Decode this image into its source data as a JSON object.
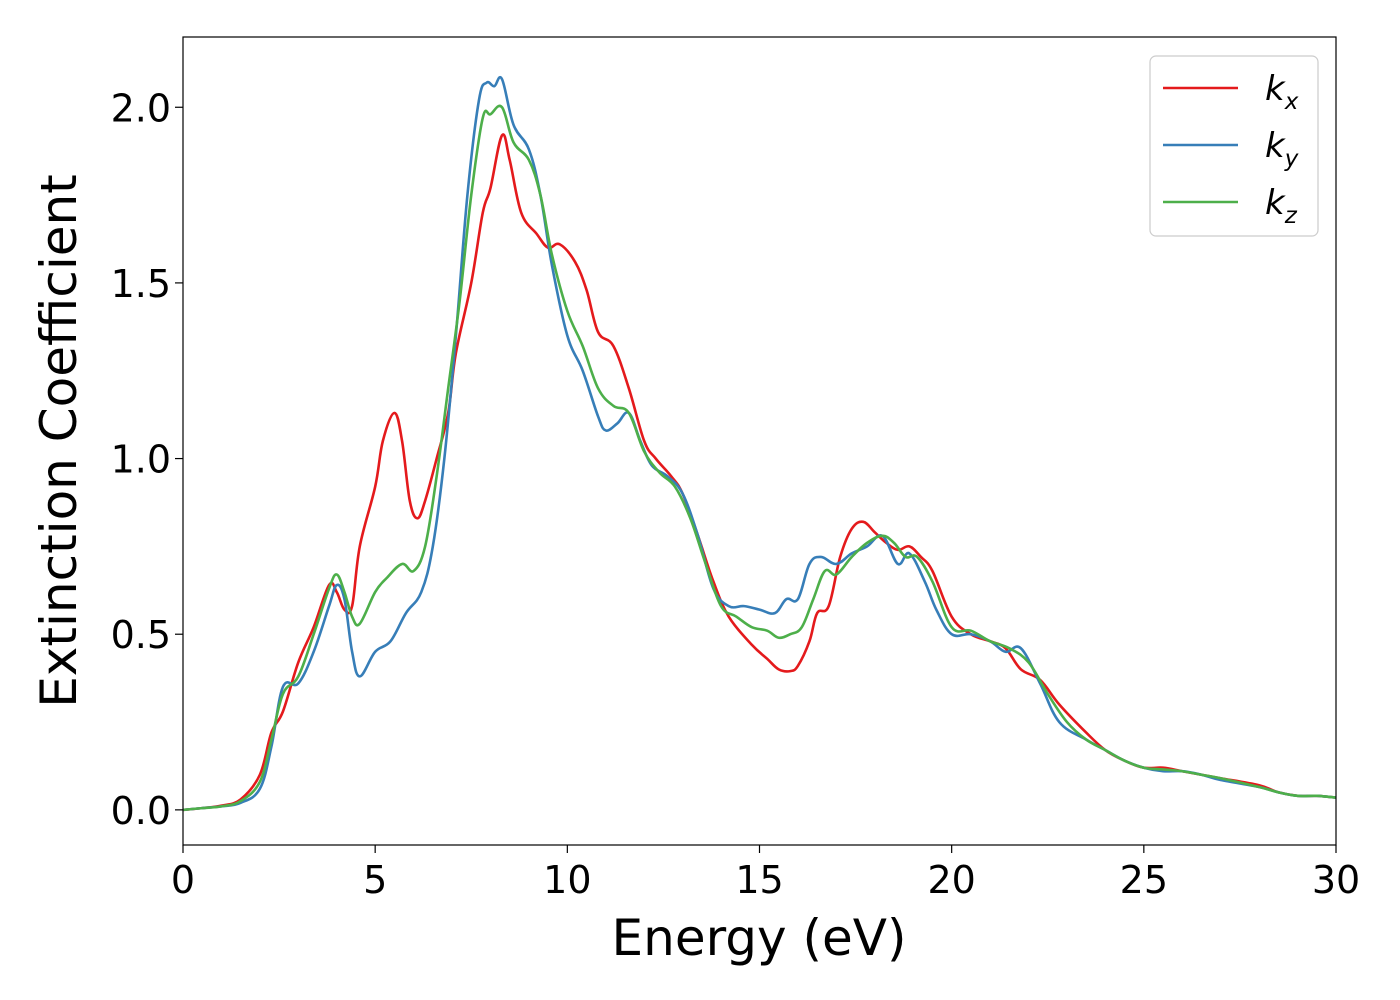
{
  "chart_data": {
    "type": "line",
    "title": "",
    "xlabel": "Energy (eV)",
    "ylabel": "Extinction Coefficient",
    "xlim": [
      0,
      30
    ],
    "ylim": [
      -0.1,
      2.2
    ],
    "xticks": [
      0,
      5,
      10,
      15,
      20,
      25,
      30
    ],
    "xtick_labels": [
      "0",
      "5",
      "10",
      "15",
      "20",
      "25",
      "30"
    ],
    "yticks": [
      0.0,
      0.5,
      1.0,
      1.5,
      2.0
    ],
    "ytick_labels": [
      "0.0",
      "0.5",
      "1.0",
      "1.5",
      "2.0"
    ],
    "grid": false,
    "legend_position": "top-right",
    "series": [
      {
        "name": "k_x",
        "label_main": "k",
        "label_sub": "x",
        "color": "#e41a1c",
        "x": [
          0,
          0.5,
          1.0,
          1.5,
          2.0,
          2.3,
          2.6,
          3.0,
          3.4,
          3.8,
          4.0,
          4.2,
          4.4,
          4.6,
          5.0,
          5.2,
          5.5,
          5.7,
          5.9,
          6.1,
          6.3,
          6.6,
          6.9,
          7.1,
          7.5,
          7.8,
          8.0,
          8.3,
          8.5,
          8.8,
          9.2,
          9.5,
          9.8,
          10.2,
          10.5,
          10.8,
          11.2,
          11.6,
          12.0,
          12.3,
          12.7,
          13.0,
          13.4,
          13.8,
          14.2,
          14.8,
          15.2,
          15.5,
          15.8,
          16.0,
          16.3,
          16.5,
          16.8,
          17.1,
          17.4,
          17.7,
          18.0,
          18.3,
          18.6,
          18.9,
          19.2,
          19.5,
          20.0,
          20.5,
          21.0,
          21.4,
          21.8,
          22.3,
          22.8,
          23.5,
          24.0,
          24.5,
          25.0,
          25.5,
          26.0,
          26.5,
          27.0,
          28.0,
          28.5,
          29.0,
          29.5,
          30.0
        ],
        "values": [
          0.0,
          0.005,
          0.012,
          0.03,
          0.1,
          0.22,
          0.28,
          0.42,
          0.52,
          0.64,
          0.62,
          0.57,
          0.58,
          0.75,
          0.92,
          1.05,
          1.13,
          1.05,
          0.88,
          0.83,
          0.88,
          1.0,
          1.13,
          1.3,
          1.5,
          1.7,
          1.77,
          1.92,
          1.85,
          1.7,
          1.64,
          1.6,
          1.61,
          1.56,
          1.48,
          1.36,
          1.32,
          1.2,
          1.05,
          1.0,
          0.95,
          0.9,
          0.78,
          0.65,
          0.55,
          0.47,
          0.43,
          0.4,
          0.395,
          0.41,
          0.48,
          0.56,
          0.58,
          0.72,
          0.8,
          0.82,
          0.79,
          0.76,
          0.74,
          0.75,
          0.72,
          0.68,
          0.55,
          0.5,
          0.48,
          0.46,
          0.4,
          0.37,
          0.3,
          0.22,
          0.17,
          0.14,
          0.12,
          0.12,
          0.11,
          0.1,
          0.09,
          0.07,
          0.05,
          0.04,
          0.04,
          0.035
        ]
      },
      {
        "name": "k_y",
        "label_main": "k",
        "label_sub": "y",
        "color": "#377eb8",
        "x": [
          0,
          0.5,
          1.0,
          1.5,
          2.0,
          2.3,
          2.6,
          3.0,
          3.4,
          3.8,
          4.0,
          4.2,
          4.4,
          4.6,
          5.0,
          5.4,
          5.8,
          6.2,
          6.5,
          6.8,
          7.1,
          7.4,
          7.7,
          7.9,
          8.1,
          8.3,
          8.6,
          9.0,
          9.3,
          9.6,
          10.0,
          10.4,
          10.8,
          11.0,
          11.3,
          11.6,
          11.9,
          12.2,
          12.6,
          13.0,
          13.4,
          13.8,
          14.2,
          14.6,
          15.0,
          15.4,
          15.7,
          16.0,
          16.3,
          16.6,
          17.0,
          17.4,
          17.8,
          18.2,
          18.6,
          18.9,
          19.3,
          19.6,
          20.0,
          20.5,
          21.0,
          21.4,
          21.8,
          22.3,
          22.8,
          23.5,
          24.0,
          24.5,
          25.0,
          25.5,
          26.0,
          26.5,
          27.0,
          28.0,
          28.5,
          29.0,
          29.5,
          30.0
        ],
        "values": [
          0.0,
          0.005,
          0.01,
          0.02,
          0.06,
          0.18,
          0.35,
          0.36,
          0.45,
          0.58,
          0.64,
          0.6,
          0.45,
          0.38,
          0.45,
          0.48,
          0.56,
          0.62,
          0.75,
          1.0,
          1.35,
          1.75,
          2.02,
          2.07,
          2.06,
          2.08,
          1.95,
          1.88,
          1.75,
          1.55,
          1.35,
          1.25,
          1.12,
          1.08,
          1.1,
          1.13,
          1.05,
          0.98,
          0.95,
          0.9,
          0.78,
          0.63,
          0.58,
          0.58,
          0.57,
          0.56,
          0.6,
          0.6,
          0.7,
          0.72,
          0.7,
          0.73,
          0.75,
          0.78,
          0.7,
          0.73,
          0.65,
          0.57,
          0.5,
          0.5,
          0.48,
          0.45,
          0.46,
          0.36,
          0.25,
          0.2,
          0.17,
          0.14,
          0.12,
          0.11,
          0.11,
          0.1,
          0.085,
          0.065,
          0.05,
          0.04,
          0.04,
          0.035
        ]
      },
      {
        "name": "k_z",
        "label_main": "k",
        "label_sub": "z",
        "color": "#4daf4a",
        "x": [
          0,
          0.5,
          1.0,
          1.5,
          2.0,
          2.3,
          2.6,
          3.0,
          3.4,
          3.8,
          4.0,
          4.2,
          4.4,
          4.6,
          5.0,
          5.3,
          5.7,
          6.0,
          6.3,
          6.6,
          6.9,
          7.2,
          7.5,
          7.8,
          8.0,
          8.3,
          8.6,
          9.0,
          9.3,
          9.6,
          10.0,
          10.4,
          10.8,
          11.2,
          11.6,
          12.0,
          12.4,
          12.8,
          13.2,
          13.6,
          14.0,
          14.4,
          14.8,
          15.2,
          15.5,
          15.8,
          16.1,
          16.4,
          16.7,
          17.0,
          17.4,
          17.8,
          18.2,
          18.5,
          18.8,
          19.1,
          19.5,
          20.0,
          20.5,
          21.0,
          21.5,
          22.0,
          22.5,
          23.0,
          23.5,
          24.0,
          24.5,
          25.0,
          25.5,
          26.0,
          26.5,
          27.0,
          28.0,
          28.5,
          29.0,
          29.5,
          30.0
        ],
        "values": [
          0.0,
          0.005,
          0.01,
          0.025,
          0.08,
          0.2,
          0.33,
          0.38,
          0.5,
          0.63,
          0.67,
          0.62,
          0.55,
          0.53,
          0.62,
          0.66,
          0.7,
          0.68,
          0.75,
          0.95,
          1.2,
          1.45,
          1.75,
          1.97,
          1.98,
          2.0,
          1.9,
          1.85,
          1.75,
          1.58,
          1.42,
          1.32,
          1.2,
          1.15,
          1.13,
          1.02,
          0.96,
          0.92,
          0.83,
          0.7,
          0.58,
          0.55,
          0.52,
          0.51,
          0.49,
          0.5,
          0.52,
          0.6,
          0.68,
          0.67,
          0.72,
          0.76,
          0.78,
          0.76,
          0.72,
          0.72,
          0.65,
          0.52,
          0.51,
          0.48,
          0.46,
          0.42,
          0.33,
          0.25,
          0.2,
          0.17,
          0.14,
          0.12,
          0.115,
          0.11,
          0.1,
          0.09,
          0.065,
          0.05,
          0.04,
          0.04,
          0.035
        ]
      }
    ]
  }
}
